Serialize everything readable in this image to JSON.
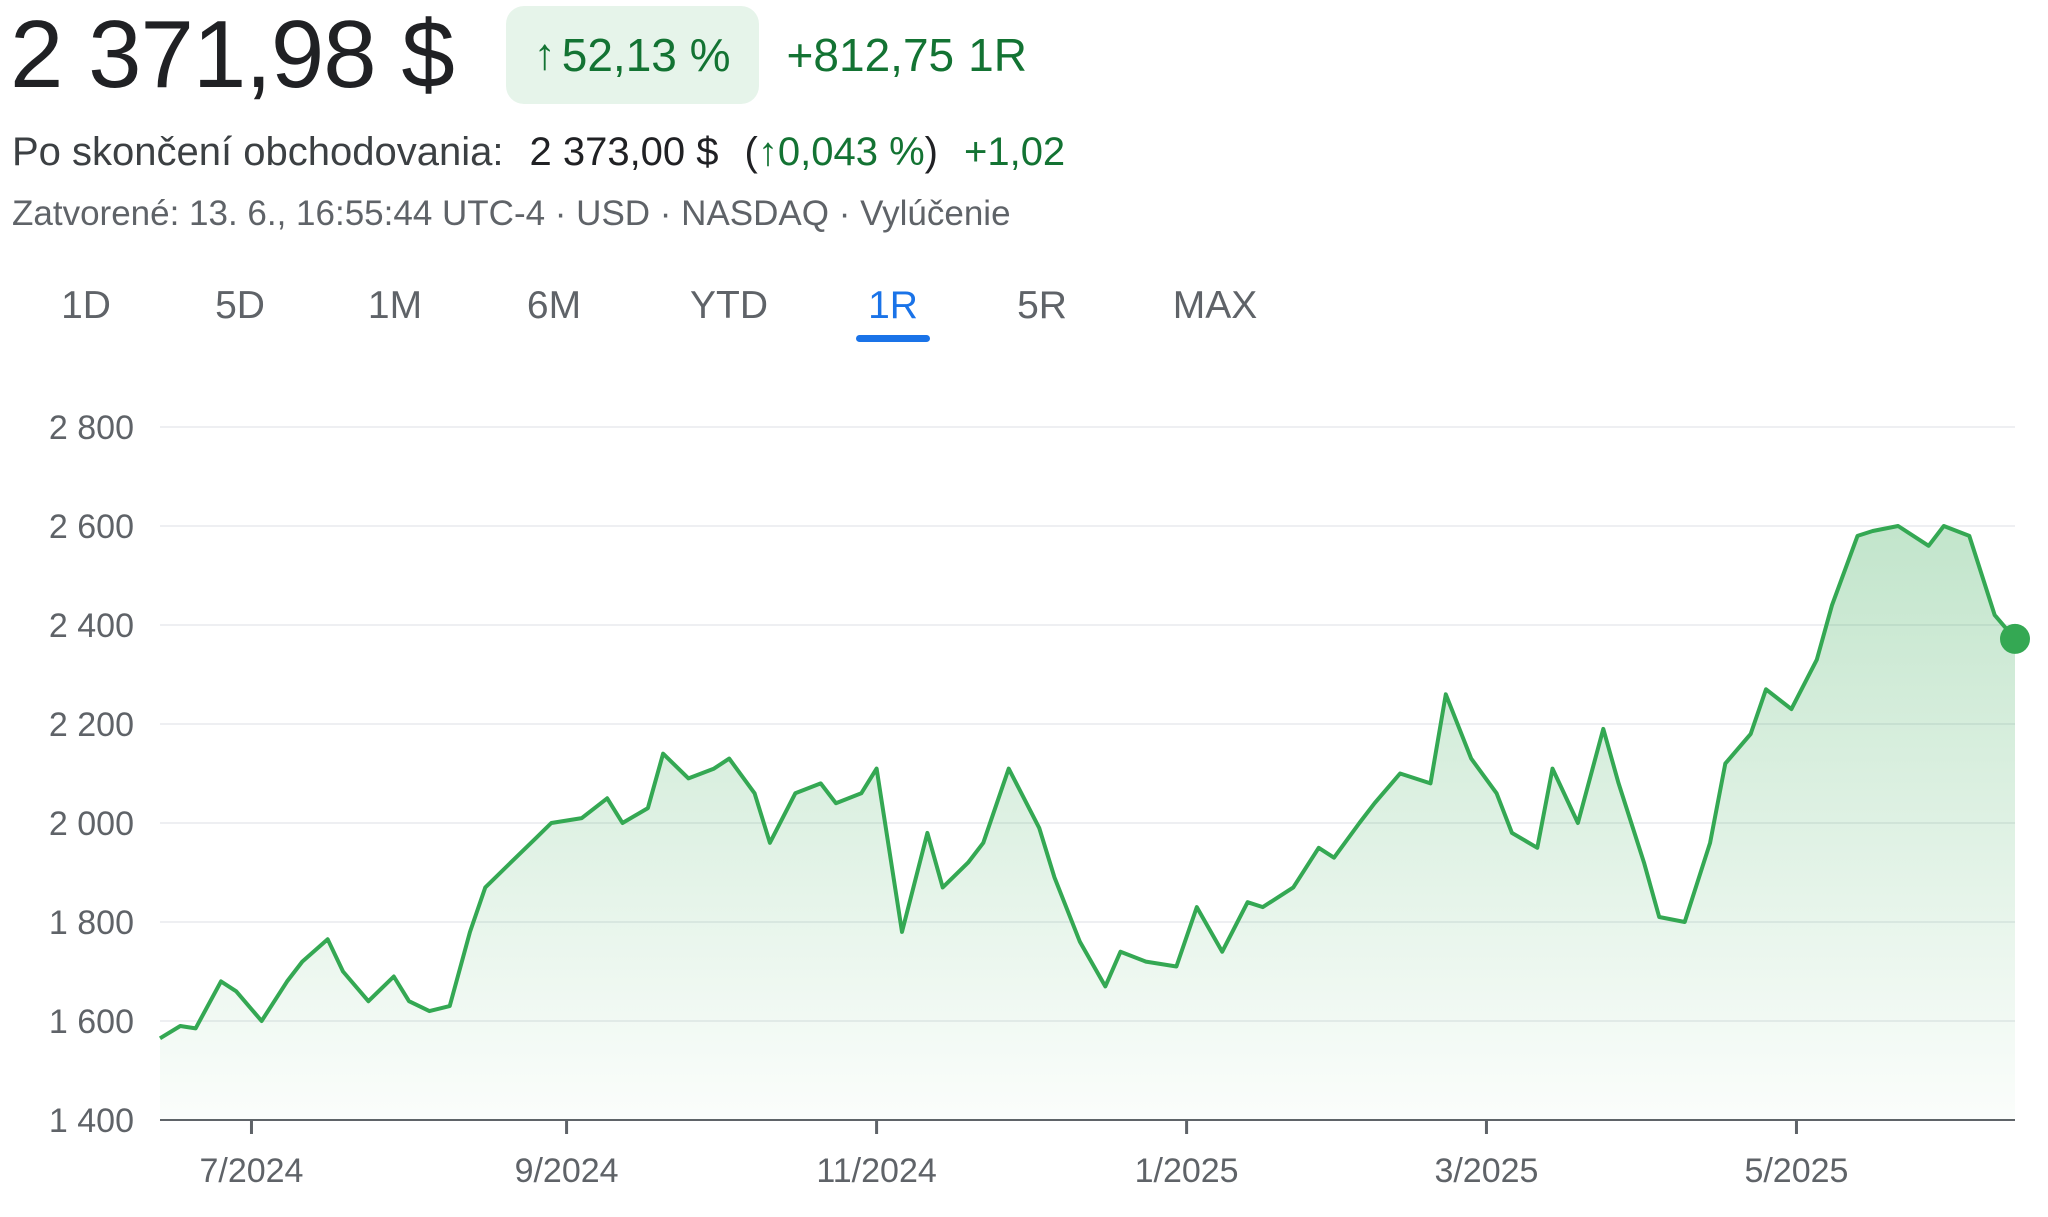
{
  "quote": {
    "price": "2 371,98 $",
    "change_arrow": "↑",
    "change_percent": "52,13 %",
    "change_abs": "+812,75",
    "change_period": "1R"
  },
  "after_hours": {
    "label": "Po skončení obchodovania:",
    "price": "2 373,00 $",
    "pct_open": "(",
    "arrow": "↑",
    "percent": "0,043 %",
    "pct_close": ")",
    "abs": "+1,02"
  },
  "meta": "Zatvorené: 13. 6., 16:55:44 UTC-4 · USD · NASDAQ · Vylúčenie",
  "tabs": [
    {
      "label": "1D",
      "active": false
    },
    {
      "label": "5D",
      "active": false
    },
    {
      "label": "1M",
      "active": false
    },
    {
      "label": "6M",
      "active": false
    },
    {
      "label": "YTD",
      "active": false
    },
    {
      "label": "1R",
      "active": true
    },
    {
      "label": "5R",
      "active": false
    },
    {
      "label": "MAX",
      "active": false
    }
  ],
  "colors": {
    "line": "#34a853",
    "fill_top": "#34a853",
    "positive_text": "#137333",
    "badge_bg": "#e6f4ea",
    "active_tab": "#1a73e8",
    "grid": "#e8eaed"
  },
  "chart_data": {
    "type": "area",
    "ylim": [
      1400,
      2800
    ],
    "yticks": [
      1400,
      1600,
      1800,
      2000,
      2200,
      2400,
      2600,
      2800
    ],
    "ytick_labels": [
      "1 400",
      "1 600",
      "1 800",
      "2 000",
      "2 200",
      "2 400",
      "2 600",
      "2 800"
    ],
    "xlim": [
      "2024-06-13",
      "2025-06-13"
    ],
    "xticks": [
      "2024-07-01",
      "2024-09-01",
      "2024-11-01",
      "2025-01-01",
      "2025-03-01",
      "2025-05-01"
    ],
    "xtick_labels": [
      "7/2024",
      "9/2024",
      "11/2024",
      "1/2025",
      "3/2025",
      "5/2025"
    ],
    "series": [
      {
        "x": [
          "2024-06-13",
          "2024-06-17",
          "2024-06-20",
          "2024-06-25",
          "2024-06-28",
          "2024-07-03",
          "2024-07-08",
          "2024-07-11",
          "2024-07-16",
          "2024-07-19",
          "2024-07-24",
          "2024-07-29",
          "2024-08-01",
          "2024-08-05",
          "2024-08-09",
          "2024-08-13",
          "2024-08-16",
          "2024-08-21",
          "2024-08-26",
          "2024-08-29",
          "2024-09-04",
          "2024-09-09",
          "2024-09-12",
          "2024-09-17",
          "2024-09-20",
          "2024-09-25",
          "2024-09-30",
          "2024-10-03",
          "2024-10-08",
          "2024-10-11",
          "2024-10-16",
          "2024-10-21",
          "2024-10-24",
          "2024-10-29",
          "2024-11-01",
          "2024-11-06",
          "2024-11-11",
          "2024-11-14",
          "2024-11-19",
          "2024-11-22",
          "2024-11-27",
          "2024-12-03",
          "2024-12-06",
          "2024-12-11",
          "2024-12-16",
          "2024-12-19",
          "2024-12-24",
          "2024-12-30",
          "2025-01-03",
          "2025-01-08",
          "2025-01-13",
          "2025-01-16",
          "2025-01-22",
          "2025-01-27",
          "2025-01-30",
          "2025-02-04",
          "2025-02-07",
          "2025-02-12",
          "2025-02-18",
          "2025-02-21",
          "2025-02-26",
          "2025-03-03",
          "2025-03-06",
          "2025-03-11",
          "2025-03-14",
          "2025-03-19",
          "2025-03-24",
          "2025-03-27",
          "2025-04-01",
          "2025-04-04",
          "2025-04-09",
          "2025-04-14",
          "2025-04-17",
          "2025-04-22",
          "2025-04-25",
          "2025-04-30",
          "2025-05-05",
          "2025-05-08",
          "2025-05-13",
          "2025-05-16",
          "2025-05-21",
          "2025-05-27",
          "2025-05-30",
          "2025-06-04",
          "2025-06-09",
          "2025-06-13"
        ],
        "y": [
          1565,
          1590,
          1585,
          1680,
          1660,
          1600,
          1680,
          1720,
          1765,
          1700,
          1640,
          1690,
          1640,
          1620,
          1630,
          1780,
          1870,
          1920,
          1970,
          2000,
          2010,
          2050,
          2000,
          2030,
          2140,
          2090,
          2110,
          2130,
          2060,
          1960,
          2060,
          2080,
          2040,
          2060,
          2110,
          1780,
          1980,
          1870,
          1920,
          1960,
          2110,
          1990,
          1890,
          1760,
          1670,
          1740,
          1720,
          1710,
          1830,
          1740,
          1840,
          1830,
          1870,
          1950,
          1930,
          2000,
          2040,
          2100,
          2080,
          2260,
          2130,
          2060,
          1980,
          1950,
          2110,
          2000,
          2190,
          2080,
          1920,
          1810,
          1800,
          1960,
          2120,
          2180,
          2270,
          2230,
          2330,
          2440,
          2580,
          2590,
          2600,
          2560,
          2600,
          2580,
          2420,
          2372
        ]
      }
    ]
  }
}
